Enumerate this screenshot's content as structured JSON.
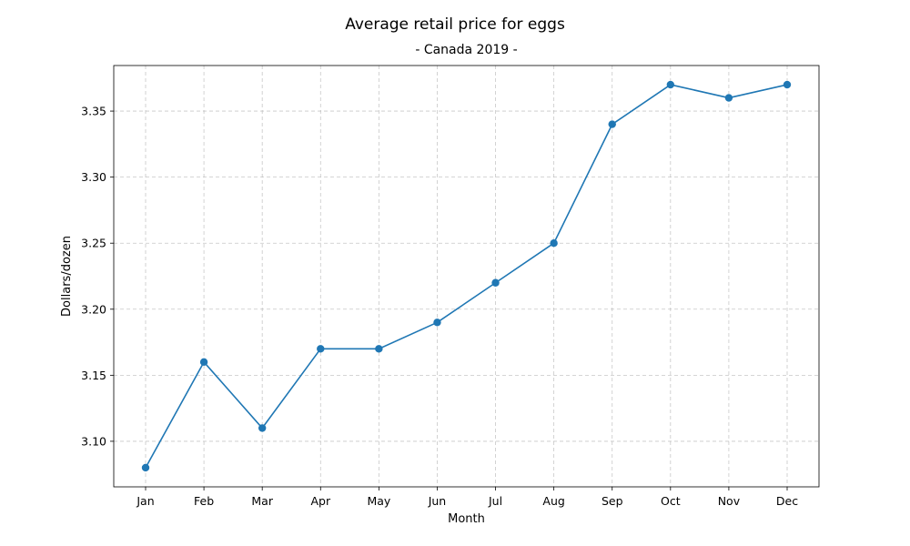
{
  "chart_data": {
    "type": "line",
    "title": "Average retail price for eggs",
    "subtitle": "- Canada 2019 -",
    "xlabel": "Month",
    "ylabel": "Dollars/dozen",
    "categories": [
      "Jan",
      "Feb",
      "Mar",
      "Apr",
      "May",
      "Jun",
      "Jul",
      "Aug",
      "Sep",
      "Oct",
      "Nov",
      "Dec"
    ],
    "series": [
      {
        "values": [
          3.08,
          3.16,
          3.11,
          3.17,
          3.17,
          3.19,
          3.22,
          3.25,
          3.34,
          3.37,
          3.36,
          3.37
        ],
        "color": "#1f77b4",
        "marker": "circle"
      }
    ],
    "ylim": [
      3.0655,
      3.3845
    ],
    "yticks": [
      3.1,
      3.15,
      3.2,
      3.25,
      3.3,
      3.35
    ],
    "ytick_labels": [
      "3.10",
      "3.15",
      "3.20",
      "3.25",
      "3.30",
      "3.35"
    ],
    "grid": true,
    "grid_style": "dashed",
    "legend": false
  }
}
